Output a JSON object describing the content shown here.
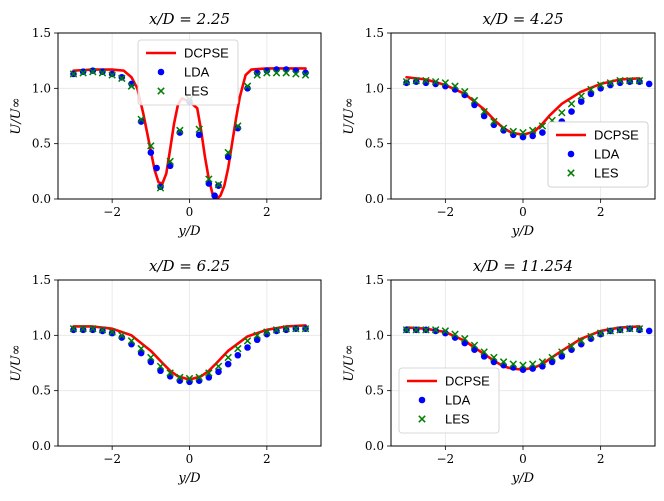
{
  "chart_data": [
    {
      "type": "line",
      "title": "x/D = 2.25",
      "xlabel": "y/D",
      "ylabel": "U/U∞",
      "xlim": [
        -3.4,
        3.4
      ],
      "ylim": [
        0,
        1.5
      ],
      "xticks": [
        -2,
        0,
        2
      ],
      "xtick_labels": [
        "−2",
        "0",
        "2"
      ],
      "yticks": [
        0.0,
        0.5,
        1.0,
        1.5
      ],
      "ytick_labels": [
        "0.0",
        "0.5",
        "1.0",
        "1.5"
      ],
      "grid": true,
      "legend_position": "top-center",
      "series": [
        {
          "name": "DCPSE",
          "kind": "line",
          "color": "#ff0000",
          "x": [
            -3.0,
            -2.5,
            -2.0,
            -1.7,
            -1.5,
            -1.35,
            -1.2,
            -1.05,
            -0.9,
            -0.8,
            -0.7,
            -0.6,
            -0.5,
            -0.4,
            -0.3,
            -0.2,
            0.0,
            0.2,
            0.3,
            0.4,
            0.5,
            0.6,
            0.7,
            0.8,
            0.9,
            1.0,
            1.1,
            1.2,
            1.3,
            1.45,
            1.6,
            2.0,
            2.5,
            3.0
          ],
          "y": [
            1.16,
            1.17,
            1.17,
            1.16,
            1.1,
            1.0,
            0.78,
            0.52,
            0.26,
            0.15,
            0.14,
            0.23,
            0.45,
            0.68,
            0.85,
            0.91,
            0.88,
            0.82,
            0.62,
            0.38,
            0.18,
            0.04,
            0.0,
            0.03,
            0.12,
            0.28,
            0.5,
            0.72,
            0.92,
            1.12,
            1.17,
            1.18,
            1.18,
            1.18
          ]
        },
        {
          "name": "LDA",
          "kind": "dot",
          "color": "#0000ff",
          "x": [
            -3.0,
            -2.75,
            -2.5,
            -2.25,
            -2.0,
            -1.75,
            -1.5,
            -1.25,
            -1.0,
            -0.85,
            -0.75,
            -0.5,
            -0.25,
            0.0,
            0.25,
            0.5,
            0.65,
            0.75,
            1.0,
            1.25,
            1.5,
            1.75,
            2.0,
            2.25,
            2.5,
            2.75,
            3.0
          ],
          "y": [
            1.13,
            1.15,
            1.16,
            1.15,
            1.13,
            1.1,
            1.04,
            0.7,
            0.42,
            0.28,
            0.11,
            0.3,
            0.6,
            0.88,
            0.58,
            0.14,
            0.03,
            0.12,
            0.38,
            0.64,
            1.0,
            1.14,
            1.16,
            1.17,
            1.17,
            1.16,
            1.14
          ]
        },
        {
          "name": "LES",
          "kind": "cross",
          "color": "#008000",
          "x": [
            -3.0,
            -2.75,
            -2.5,
            -2.25,
            -2.0,
            -1.75,
            -1.5,
            -1.25,
            -1.0,
            -0.75,
            -0.5,
            -0.25,
            0.0,
            0.25,
            0.5,
            0.75,
            1.0,
            1.25,
            1.5,
            1.75,
            2.0,
            2.25,
            2.5,
            2.75,
            3.0
          ],
          "y": [
            1.13,
            1.14,
            1.15,
            1.14,
            1.12,
            1.09,
            1.02,
            0.72,
            0.48,
            0.1,
            0.34,
            0.62,
            0.9,
            0.63,
            0.18,
            0.13,
            0.42,
            0.66,
            1.02,
            1.12,
            1.14,
            1.14,
            1.14,
            1.13,
            1.12
          ]
        }
      ]
    },
    {
      "type": "line",
      "title": "x/D = 4.25",
      "xlabel": "y/D",
      "ylabel": "U/U∞",
      "xlim": [
        -3.4,
        3.4
      ],
      "ylim": [
        0,
        1.5
      ],
      "xticks": [
        -2,
        0,
        2
      ],
      "xtick_labels": [
        "−2",
        "0",
        "2"
      ],
      "yticks": [
        0.0,
        0.5,
        1.0,
        1.5
      ],
      "ytick_labels": [
        "0.0",
        "0.5",
        "1.0",
        "1.5"
      ],
      "grid": true,
      "legend_position": "lower-right",
      "series": [
        {
          "name": "DCPSE",
          "kind": "line",
          "color": "#ff0000",
          "x": [
            -3.0,
            -2.5,
            -2.0,
            -1.5,
            -1.0,
            -0.7,
            -0.5,
            -0.3,
            0.0,
            0.3,
            0.5,
            0.7,
            1.0,
            1.5,
            2.0,
            2.5,
            3.0
          ],
          "y": [
            1.1,
            1.08,
            1.03,
            0.95,
            0.81,
            0.7,
            0.64,
            0.6,
            0.58,
            0.61,
            0.68,
            0.76,
            0.86,
            0.97,
            1.04,
            1.08,
            1.09
          ]
        },
        {
          "name": "LDA",
          "kind": "dot",
          "color": "#0000ff",
          "x": [
            -3.0,
            -2.75,
            -2.5,
            -2.25,
            -2.0,
            -1.75,
            -1.5,
            -1.25,
            -1.0,
            -0.75,
            -0.5,
            -0.25,
            0.0,
            0.25,
            0.5,
            0.75,
            1.0,
            1.25,
            1.5,
            1.75,
            2.0,
            2.25,
            2.5,
            2.75,
            3.0,
            3.25
          ],
          "y": [
            1.05,
            1.06,
            1.05,
            1.04,
            1.02,
            0.99,
            0.94,
            0.85,
            0.75,
            0.67,
            0.62,
            0.58,
            0.56,
            0.57,
            0.6,
            0.64,
            0.7,
            0.79,
            0.88,
            0.95,
            1.0,
            1.03,
            1.05,
            1.06,
            1.06,
            1.04
          ]
        },
        {
          "name": "LES",
          "kind": "cross",
          "color": "#008000",
          "x": [
            -3.0,
            -2.75,
            -2.5,
            -2.25,
            -2.0,
            -1.75,
            -1.5,
            -1.25,
            -1.0,
            -0.75,
            -0.5,
            -0.25,
            0.0,
            0.25,
            0.5,
            0.75,
            1.0,
            1.25,
            1.5,
            1.75,
            2.0,
            2.25,
            2.5,
            2.75,
            3.0
          ],
          "y": [
            1.06,
            1.07,
            1.07,
            1.06,
            1.05,
            1.02,
            0.97,
            0.89,
            0.79,
            0.7,
            0.64,
            0.61,
            0.6,
            0.62,
            0.66,
            0.71,
            0.78,
            0.86,
            0.93,
            0.99,
            1.03,
            1.05,
            1.07,
            1.07,
            1.07
          ]
        }
      ]
    },
    {
      "type": "line",
      "title": "x/D = 6.25",
      "xlabel": "y/D",
      "ylabel": "U/U∞",
      "xlim": [
        -3.4,
        3.4
      ],
      "ylim": [
        0,
        1.5
      ],
      "xticks": [
        -2,
        0,
        2
      ],
      "xtick_labels": [
        "−2",
        "0",
        "2"
      ],
      "yticks": [
        0.0,
        0.5,
        1.0,
        1.5
      ],
      "ytick_labels": [
        "0.0",
        "0.5",
        "1.0",
        "1.5"
      ],
      "grid": true,
      "legend_position": "lower-right",
      "series": [
        {
          "name": "DCPSE",
          "kind": "line",
          "color": "#ff0000",
          "x": [
            -3.0,
            -2.5,
            -2.0,
            -1.5,
            -1.0,
            -0.7,
            -0.5,
            -0.3,
            0.0,
            0.3,
            0.5,
            0.7,
            1.0,
            1.5,
            2.0,
            2.5,
            3.0
          ],
          "y": [
            1.08,
            1.08,
            1.06,
            1.0,
            0.86,
            0.75,
            0.68,
            0.63,
            0.6,
            0.63,
            0.68,
            0.75,
            0.86,
            0.99,
            1.05,
            1.08,
            1.09
          ]
        },
        {
          "name": "LDA",
          "kind": "dot",
          "color": "#0000ff",
          "x": [
            -3.0,
            -2.75,
            -2.5,
            -2.25,
            -2.0,
            -1.75,
            -1.5,
            -1.25,
            -1.0,
            -0.75,
            -0.5,
            -0.25,
            0.0,
            0.25,
            0.5,
            0.75,
            1.0,
            1.25,
            1.5,
            1.75,
            2.0,
            2.25,
            2.5,
            2.75,
            3.0
          ],
          "y": [
            1.05,
            1.05,
            1.05,
            1.04,
            1.02,
            0.98,
            0.92,
            0.84,
            0.76,
            0.68,
            0.63,
            0.59,
            0.58,
            0.59,
            0.62,
            0.67,
            0.74,
            0.82,
            0.89,
            0.96,
            1.01,
            1.04,
            1.05,
            1.06,
            1.06
          ]
        },
        {
          "name": "LES",
          "kind": "cross",
          "color": "#008000",
          "x": [
            -3.0,
            -2.75,
            -2.5,
            -2.25,
            -2.0,
            -1.75,
            -1.5,
            -1.25,
            -1.0,
            -0.75,
            -0.5,
            -0.25,
            0.0,
            0.25,
            0.5,
            0.75,
            1.0,
            1.25,
            1.5,
            1.75,
            2.0,
            2.25,
            2.5,
            2.75,
            3.0
          ],
          "y": [
            1.06,
            1.06,
            1.06,
            1.05,
            1.03,
            1.0,
            0.95,
            0.88,
            0.8,
            0.72,
            0.66,
            0.62,
            0.61,
            0.62,
            0.66,
            0.72,
            0.8,
            0.88,
            0.95,
            1.0,
            1.03,
            1.05,
            1.06,
            1.06,
            1.06
          ]
        }
      ]
    },
    {
      "type": "line",
      "title": "x/D = 11.254",
      "xlabel": "y/D",
      "ylabel": "U/U∞",
      "xlim": [
        -3.4,
        3.4
      ],
      "ylim": [
        0,
        1.5
      ],
      "xticks": [
        -2,
        0,
        2
      ],
      "xtick_labels": [
        "−2",
        "0",
        "2"
      ],
      "yticks": [
        0.0,
        0.5,
        1.0,
        1.5
      ],
      "ytick_labels": [
        "0.0",
        "0.5",
        "1.0",
        "1.5"
      ],
      "grid": true,
      "legend_position": "lower-left",
      "series": [
        {
          "name": "DCPSE",
          "kind": "line",
          "color": "#ff0000",
          "x": [
            -3.0,
            -2.5,
            -2.0,
            -1.5,
            -1.0,
            -0.7,
            -0.5,
            -0.3,
            0.0,
            0.3,
            0.5,
            0.7,
            1.0,
            1.5,
            2.0,
            2.5,
            3.0
          ],
          "y": [
            1.07,
            1.06,
            1.03,
            0.95,
            0.83,
            0.76,
            0.72,
            0.7,
            0.69,
            0.71,
            0.74,
            0.79,
            0.86,
            0.97,
            1.04,
            1.07,
            1.08
          ]
        },
        {
          "name": "LDA",
          "kind": "dot",
          "color": "#0000ff",
          "x": [
            -3.0,
            -2.75,
            -2.5,
            -2.25,
            -2.0,
            -1.75,
            -1.5,
            -1.25,
            -1.0,
            -0.75,
            -0.5,
            -0.25,
            0.0,
            0.25,
            0.5,
            0.75,
            1.0,
            1.25,
            1.5,
            1.75,
            2.0,
            2.25,
            2.5,
            2.75,
            3.0,
            3.25
          ],
          "y": [
            1.05,
            1.05,
            1.05,
            1.04,
            1.02,
            0.98,
            0.93,
            0.87,
            0.81,
            0.76,
            0.73,
            0.71,
            0.69,
            0.7,
            0.72,
            0.76,
            0.81,
            0.87,
            0.92,
            0.97,
            1.01,
            1.04,
            1.05,
            1.06,
            1.05,
            1.04
          ]
        },
        {
          "name": "LES",
          "kind": "cross",
          "color": "#008000",
          "x": [
            -3.0,
            -2.75,
            -2.5,
            -2.25,
            -2.0,
            -1.75,
            -1.5,
            -1.25,
            -1.0,
            -0.75,
            -0.5,
            -0.25,
            0.0,
            0.25,
            0.5,
            0.75,
            1.0,
            1.25,
            1.5,
            1.75,
            2.0,
            2.25,
            2.5,
            2.75,
            3.0
          ],
          "y": [
            1.05,
            1.05,
            1.05,
            1.05,
            1.04,
            1.01,
            0.97,
            0.91,
            0.85,
            0.8,
            0.76,
            0.74,
            0.73,
            0.74,
            0.76,
            0.8,
            0.85,
            0.9,
            0.95,
            0.99,
            1.02,
            1.04,
            1.05,
            1.06,
            1.06
          ]
        }
      ]
    }
  ]
}
